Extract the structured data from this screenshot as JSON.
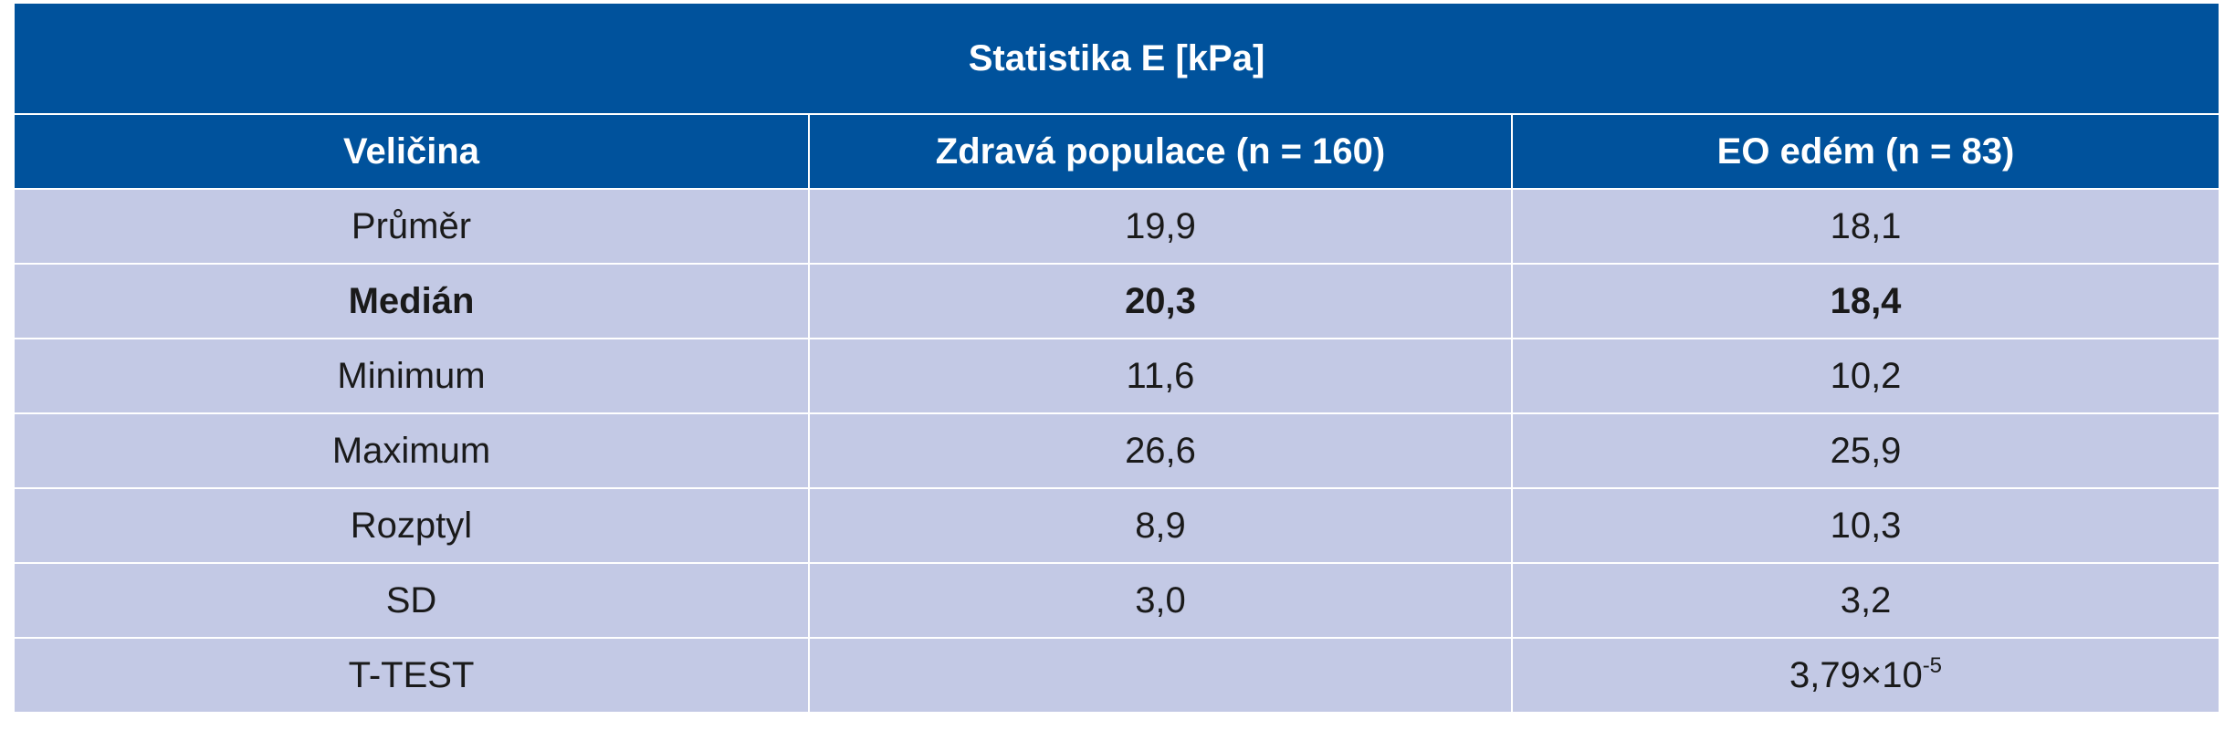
{
  "table": {
    "title": "Statistika E [kPa]",
    "headers": [
      "Veličina",
      "Zdravá populace (n = 160)",
      "EO edém (n = 83)"
    ],
    "rows": [
      {
        "label": "Průměr",
        "healthy": "19,9",
        "edema": "18,1",
        "bold": false
      },
      {
        "label": "Medián",
        "healthy": "20,3",
        "edema": "18,4",
        "bold": true
      },
      {
        "label": "Minimum",
        "healthy": "11,6",
        "edema": "10,2",
        "bold": false
      },
      {
        "label": "Maximum",
        "healthy": "26,6",
        "edema": "25,9",
        "bold": false
      },
      {
        "label": "Rozptyl",
        "healthy": "8,9",
        "edema": "10,3",
        "bold": false
      },
      {
        "label": "SD",
        "healthy": "3,0",
        "edema": "3,2",
        "bold": false
      }
    ],
    "ttest": {
      "label": "T-TEST",
      "healthy": "",
      "edema_mantissa": "3,79×10",
      "edema_exponent": "-5"
    }
  }
}
